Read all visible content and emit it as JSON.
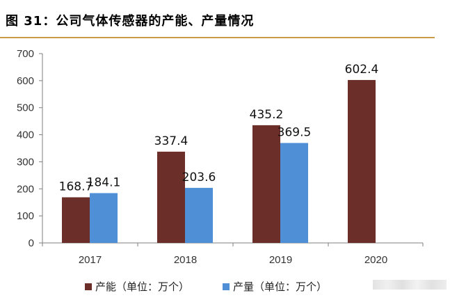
{
  "figure": {
    "title": "图 31：公司气体传感器的产能、产量情况"
  },
  "colors": {
    "capacity": "#6b2e28",
    "output": "#4f8fd6",
    "axis": "#7f7f7f",
    "title_rule": "#c89a4a"
  },
  "chart_data": {
    "type": "bar",
    "categories": [
      "2017",
      "2018",
      "2019",
      "2020"
    ],
    "series": [
      {
        "name": "产能（单位：万个）",
        "values": [
          168.7,
          337.4,
          435.2,
          602.4
        ]
      },
      {
        "name": "产量（单位：万个）",
        "values": [
          184.1,
          203.6,
          369.5,
          null
        ]
      }
    ],
    "data_labels": [
      [
        "168.7",
        "337.4",
        "435.2",
        "602.4"
      ],
      [
        "184.1",
        "203.6",
        "369.5",
        ""
      ]
    ],
    "ylim": [
      0,
      700
    ],
    "yticks": [
      "0",
      "100",
      "200",
      "300",
      "400",
      "500",
      "600",
      "700"
    ],
    "legend": "bottom",
    "grid": false
  }
}
